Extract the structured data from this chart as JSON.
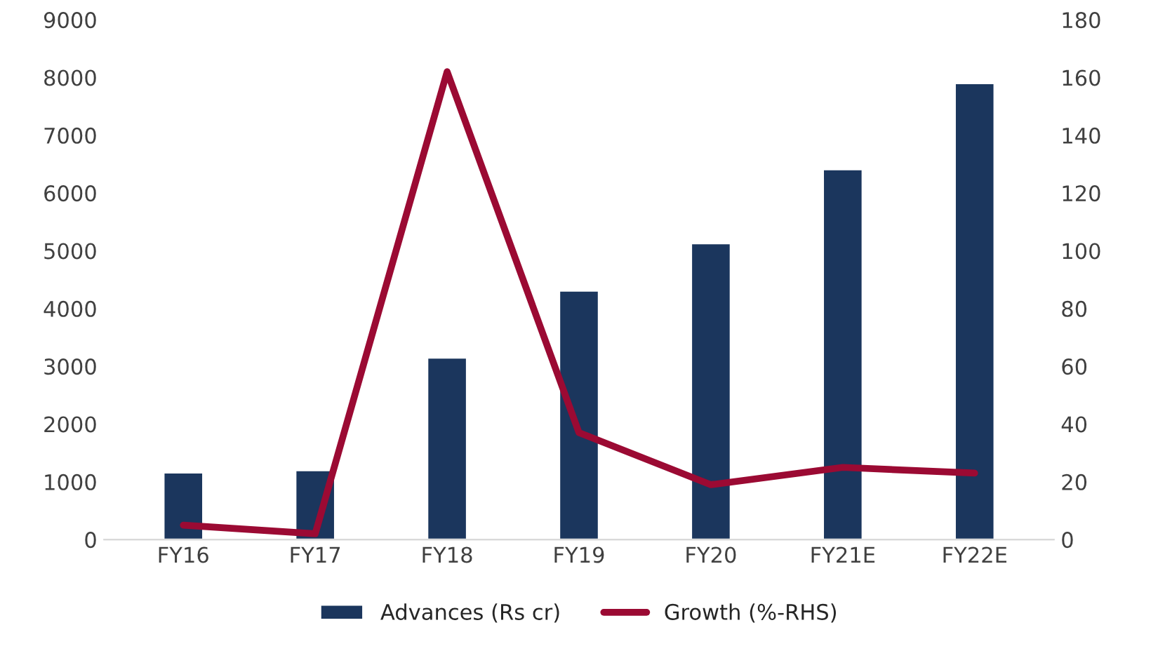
{
  "chart_data": {
    "type": "bar",
    "categories": [
      "FY16",
      "FY17",
      "FY18",
      "FY19",
      "FY20",
      "FY21E",
      "FY22E"
    ],
    "series": [
      {
        "name": "Advances (Rs cr)",
        "color": "#1b365d",
        "values": [
          1160,
          1200,
          3150,
          4310,
          5130,
          6410,
          7900
        ]
      },
      {
        "name": "Growth (%-RHS)",
        "type": "line",
        "axis": "y2",
        "color": "#9b0a33",
        "values": [
          5,
          2,
          162,
          37,
          19,
          25,
          23
        ]
      }
    ],
    "ylim": [
      0,
      9000
    ],
    "yticks": [
      0,
      1000,
      2000,
      3000,
      4000,
      5000,
      6000,
      7000,
      8000,
      9000
    ],
    "y2lim": [
      0,
      180
    ],
    "y2ticks": [
      0,
      20,
      40,
      60,
      80,
      100,
      120,
      140,
      160,
      180
    ],
    "grid": false,
    "legend": "bottom"
  }
}
